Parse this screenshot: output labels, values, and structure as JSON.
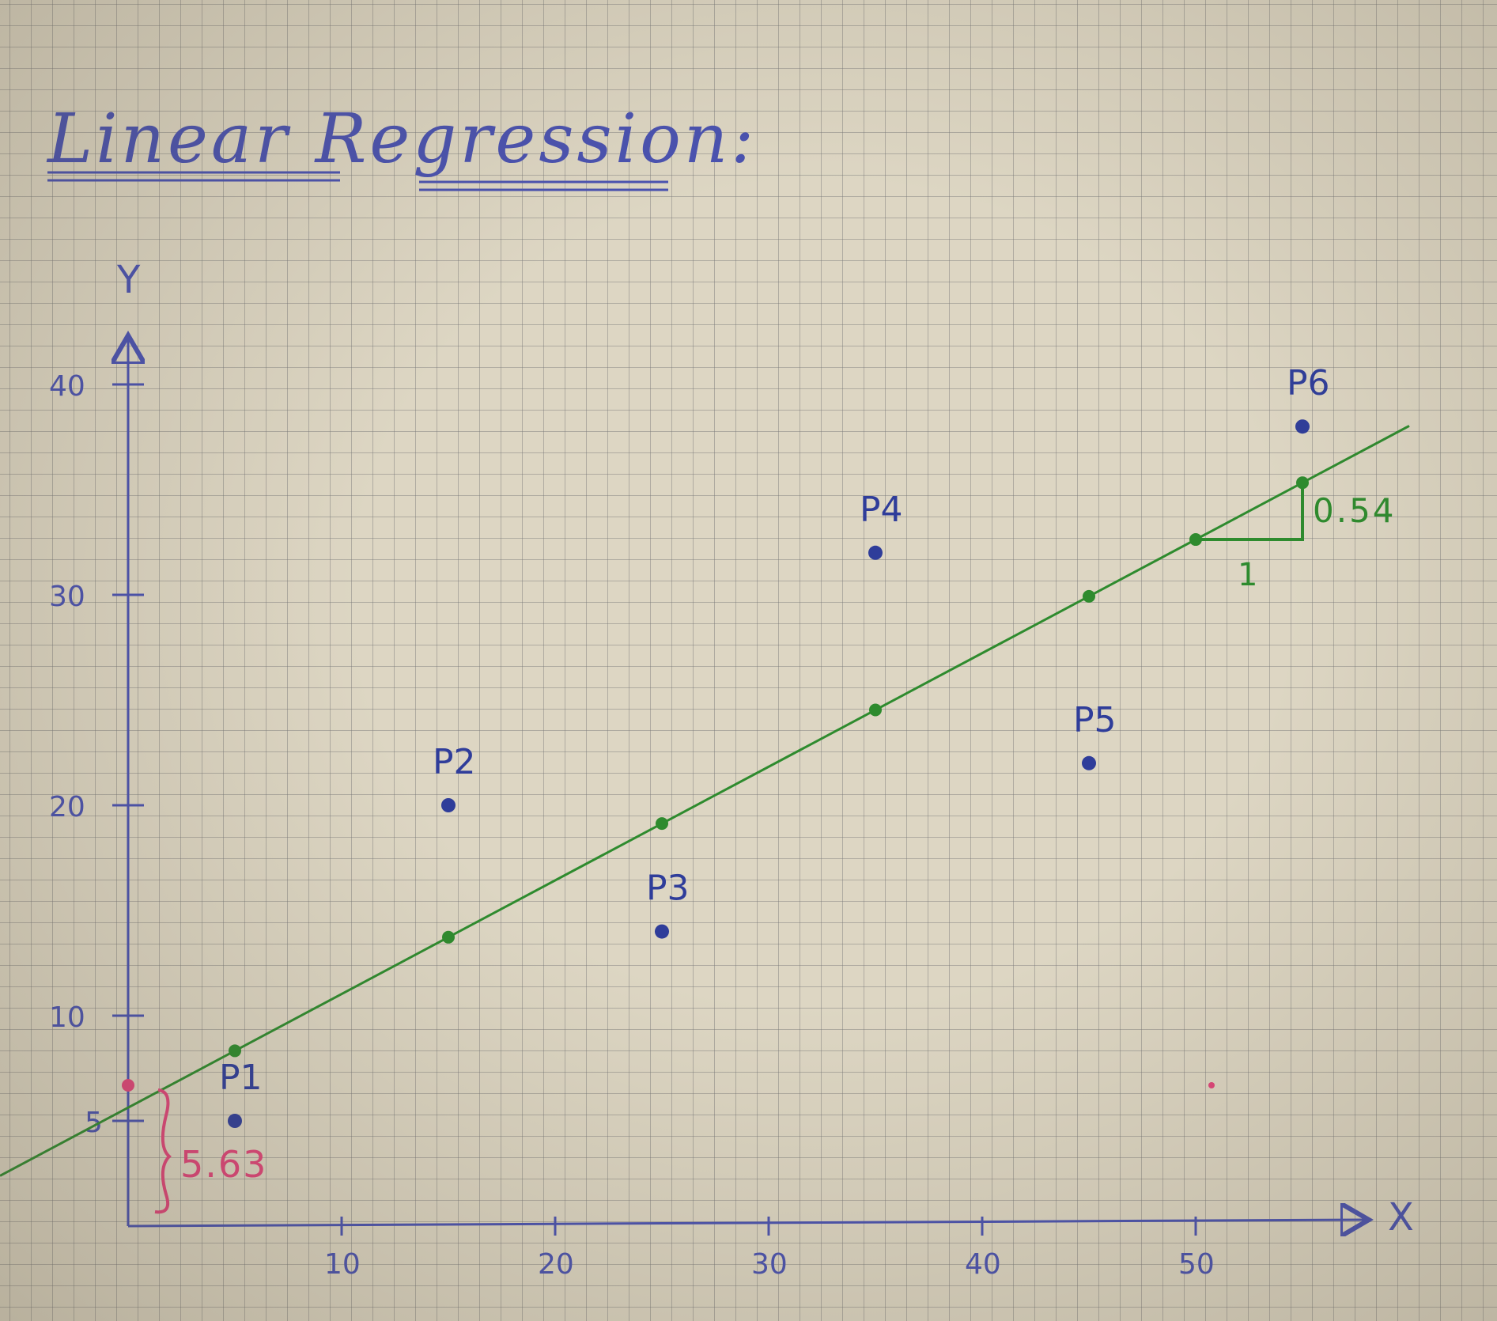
{
  "chart_data": {
    "type": "scatter",
    "title": "Linear Regression:",
    "xlabel": "X",
    "ylabel": "Y",
    "xlim": [
      0,
      57
    ],
    "ylim": [
      0,
      42
    ],
    "x_ticks": [
      "10",
      "20",
      "30",
      "40",
      "50"
    ],
    "y_ticks": [
      "5",
      "10",
      "20",
      "30",
      "40"
    ],
    "points": [
      {
        "label": "P1",
        "x": 5,
        "y": 5
      },
      {
        "label": "P2",
        "x": 15,
        "y": 20
      },
      {
        "label": "P3",
        "x": 25,
        "y": 14
      },
      {
        "label": "P4",
        "x": 35,
        "y": 32
      },
      {
        "label": "P5",
        "x": 45,
        "y": 22
      },
      {
        "label": "P6",
        "x": 55,
        "y": 38
      }
    ],
    "regression_line": {
      "intercept": 5.63,
      "slope": 0.54
    },
    "line_marks_x": [
      5,
      15,
      25,
      35,
      45,
      50,
      55
    ],
    "intercept_label": "5.63",
    "slope_label": "0.54",
    "slope_run_label": "1",
    "colors": {
      "points": "#2f3d9a",
      "line": "#2e8b2e",
      "intercept": "#e0457a",
      "ink": "#4a52b0"
    }
  }
}
